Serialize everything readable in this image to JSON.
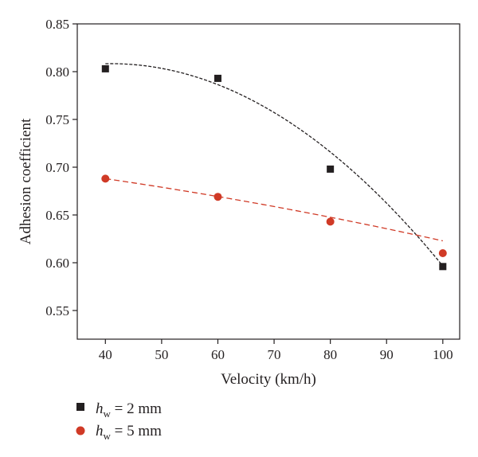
{
  "chart_data": {
    "type": "scatter",
    "title": "",
    "xlabel": "Velocity (km/h)",
    "ylabel": "Adhesion coefficient",
    "xlim": [
      35,
      103
    ],
    "ylim": [
      0.52,
      0.85
    ],
    "xticks": [
      40,
      50,
      60,
      70,
      80,
      90,
      100
    ],
    "yticks": [
      0.55,
      0.6,
      0.65,
      0.7,
      0.75,
      0.8,
      0.85
    ],
    "xtick_labels": [
      "40",
      "50",
      "60",
      "70",
      "80",
      "90",
      "100"
    ],
    "ytick_labels": [
      "0.55",
      "0.60",
      "0.65",
      "0.70",
      "0.75",
      "0.80",
      "0.85"
    ],
    "grid": false,
    "legend_position": "bottom-left, below plot",
    "series": [
      {
        "name": "h_w = 2 mm",
        "legend_main": "h",
        "legend_sub": "w",
        "legend_rest": " = 2 mm",
        "marker": "square",
        "color": "#231f20",
        "fit_color": "#231f20",
        "x": [
          40,
          60,
          80,
          100
        ],
        "y": [
          0.803,
          0.793,
          0.698,
          0.596
        ],
        "fit": {
          "type": "quadratic",
          "a": -6.08e-05,
          "b": 0.004985,
          "c": 0.7062,
          "x_range": [
            40,
            100
          ]
        }
      },
      {
        "name": "h_w = 5 mm",
        "legend_main": "h",
        "legend_sub": "w",
        "legend_rest": " = 5 mm",
        "marker": "circle",
        "color": "#d03a26",
        "fit_color": "#d03a26",
        "x": [
          40,
          60,
          80,
          100
        ],
        "y": [
          0.688,
          0.669,
          0.643,
          0.61
        ],
        "fit": {
          "type": "quadratic",
          "a": -3.75e-06,
          "b": -0.00056,
          "c": 0.7164,
          "x_range": [
            40,
            100
          ]
        }
      }
    ]
  }
}
